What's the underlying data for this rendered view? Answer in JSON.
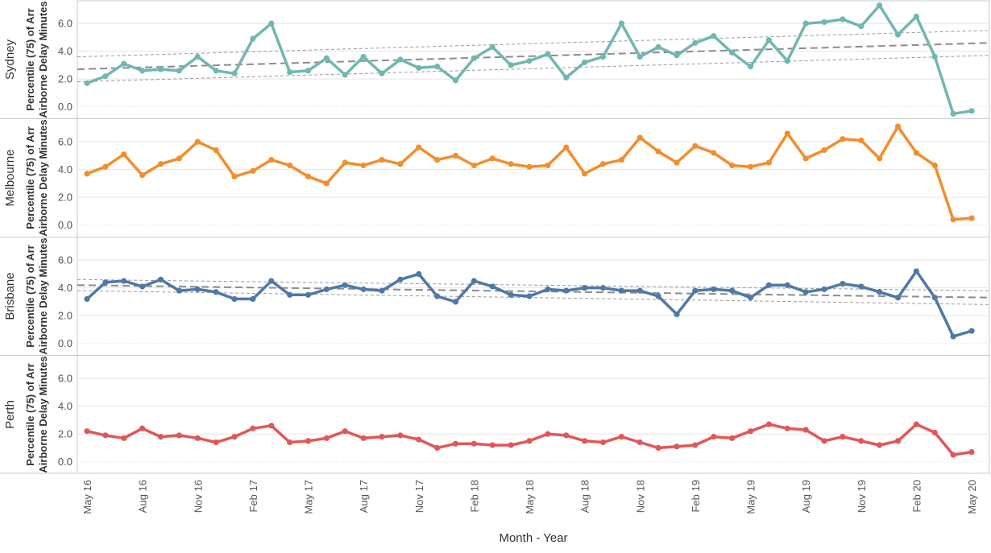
{
  "chart_data": {
    "type": "line",
    "xlabel": "Month - Year",
    "ylabel_line1": "Percentile (75) of Arr",
    "ylabel_line2": "Airborne Delay Minutes",
    "ylim": [
      -0.6,
      7.4
    ],
    "yticks": [
      "0.0",
      "2.0",
      "4.0",
      "6.0"
    ],
    "ytick_values": [
      0,
      2,
      4,
      6
    ],
    "grid": true,
    "x_months": [
      "May 16",
      "Jun 16",
      "Jul 16",
      "Aug 16",
      "Sep 16",
      "Oct 16",
      "Nov 16",
      "Dec 16",
      "Jan 17",
      "Feb 17",
      "Mar 17",
      "Apr 17",
      "May 17",
      "Jun 17",
      "Jul 17",
      "Aug 17",
      "Sep 17",
      "Oct 17",
      "Nov 17",
      "Dec 17",
      "Jan 18",
      "Feb 18",
      "Mar 18",
      "Apr 18",
      "May 18",
      "Jun 18",
      "Jul 18",
      "Aug 18",
      "Sep 18",
      "Oct 18",
      "Nov 18",
      "Dec 18",
      "Jan 19",
      "Feb 19",
      "Mar 19",
      "Apr 19",
      "May 19",
      "Jun 19",
      "Jul 19",
      "Aug 19",
      "Sep 19",
      "Oct 19",
      "Nov 19",
      "Dec 19",
      "Jan 20",
      "Feb 20",
      "Mar 20",
      "Apr 20",
      "May 20"
    ],
    "x_tick_labels": [
      "May 16",
      "Aug 16",
      "Nov 16",
      "Feb 17",
      "May 17",
      "Aug 17",
      "Nov 17",
      "Feb 18",
      "May 18",
      "Aug 18",
      "Nov 18",
      "Feb 19",
      "May 19",
      "Aug 19",
      "Nov 19",
      "Feb 20",
      "May 20"
    ],
    "series": [
      {
        "name": "Sydney",
        "color": "#6fb8b1",
        "values": [
          1.7,
          2.2,
          3.1,
          2.6,
          2.7,
          2.6,
          3.6,
          2.6,
          2.4,
          4.9,
          6.0,
          2.5,
          2.6,
          3.5,
          2.3,
          3.6,
          2.4,
          3.4,
          2.8,
          2.9,
          1.9,
          3.5,
          4.3,
          3.0,
          3.3,
          3.8,
          2.1,
          3.2,
          3.6,
          6.0,
          3.6,
          4.3,
          3.7,
          4.6,
          5.1,
          3.9,
          2.9,
          4.8,
          3.3,
          6.0,
          6.1,
          6.3,
          5.8,
          7.3,
          5.2,
          6.5,
          3.6,
          -0.5,
          -0.3
        ],
        "trend": true,
        "trend_start": 2.7,
        "trend_end": 4.6,
        "band_upper_start": 3.6,
        "band_upper_end": 5.5,
        "band_lower_start": 1.8,
        "band_lower_end": 3.7
      },
      {
        "name": "Melbourne",
        "color": "#f28e2b",
        "values": [
          3.7,
          4.2,
          5.1,
          3.6,
          4.4,
          4.8,
          6.0,
          5.4,
          3.5,
          3.9,
          4.7,
          4.3,
          3.5,
          3.0,
          4.5,
          4.3,
          4.7,
          4.4,
          5.6,
          4.7,
          5.0,
          4.3,
          4.8,
          4.4,
          4.2,
          4.3,
          5.6,
          3.7,
          4.4,
          4.7,
          6.3,
          5.3,
          4.5,
          5.7,
          5.2,
          4.3,
          4.2,
          4.5,
          6.6,
          4.8,
          5.4,
          6.2,
          6.1,
          4.8,
          7.1,
          5.2,
          4.3,
          0.4,
          0.5
        ],
        "trend": false
      },
      {
        "name": "Brisbane",
        "color": "#4e79a7",
        "values": [
          3.2,
          4.4,
          4.5,
          4.1,
          4.6,
          3.8,
          3.9,
          3.7,
          3.2,
          3.2,
          4.5,
          3.5,
          3.5,
          3.9,
          4.2,
          3.9,
          3.8,
          4.6,
          5.0,
          3.4,
          3.0,
          4.5,
          4.1,
          3.5,
          3.4,
          3.9,
          3.8,
          4.0,
          4.0,
          3.8,
          3.8,
          3.4,
          2.1,
          3.8,
          3.9,
          3.8,
          3.3,
          4.2,
          4.2,
          3.7,
          3.9,
          4.3,
          4.1,
          3.7,
          3.3,
          5.2,
          3.3,
          0.5,
          0.9
        ],
        "trend": true,
        "trend_start": 4.2,
        "trend_end": 3.3,
        "band_upper_start": 4.6,
        "band_upper_end": 3.8,
        "band_lower_start": 3.8,
        "band_lower_end": 2.8
      },
      {
        "name": "Perth",
        "color": "#e15759",
        "values": [
          2.2,
          1.9,
          1.7,
          2.4,
          1.8,
          1.9,
          1.7,
          1.4,
          1.8,
          2.4,
          2.6,
          1.4,
          1.5,
          1.7,
          2.2,
          1.7,
          1.8,
          1.9,
          1.6,
          1.0,
          1.3,
          1.3,
          1.2,
          1.2,
          1.5,
          2.0,
          1.9,
          1.5,
          1.4,
          1.8,
          1.4,
          1.0,
          1.1,
          1.2,
          1.8,
          1.7,
          2.2,
          2.7,
          2.4,
          2.3,
          1.5,
          1.8,
          1.5,
          1.2,
          1.5,
          2.7,
          2.1,
          0.5,
          0.7
        ],
        "trend": false
      }
    ]
  }
}
